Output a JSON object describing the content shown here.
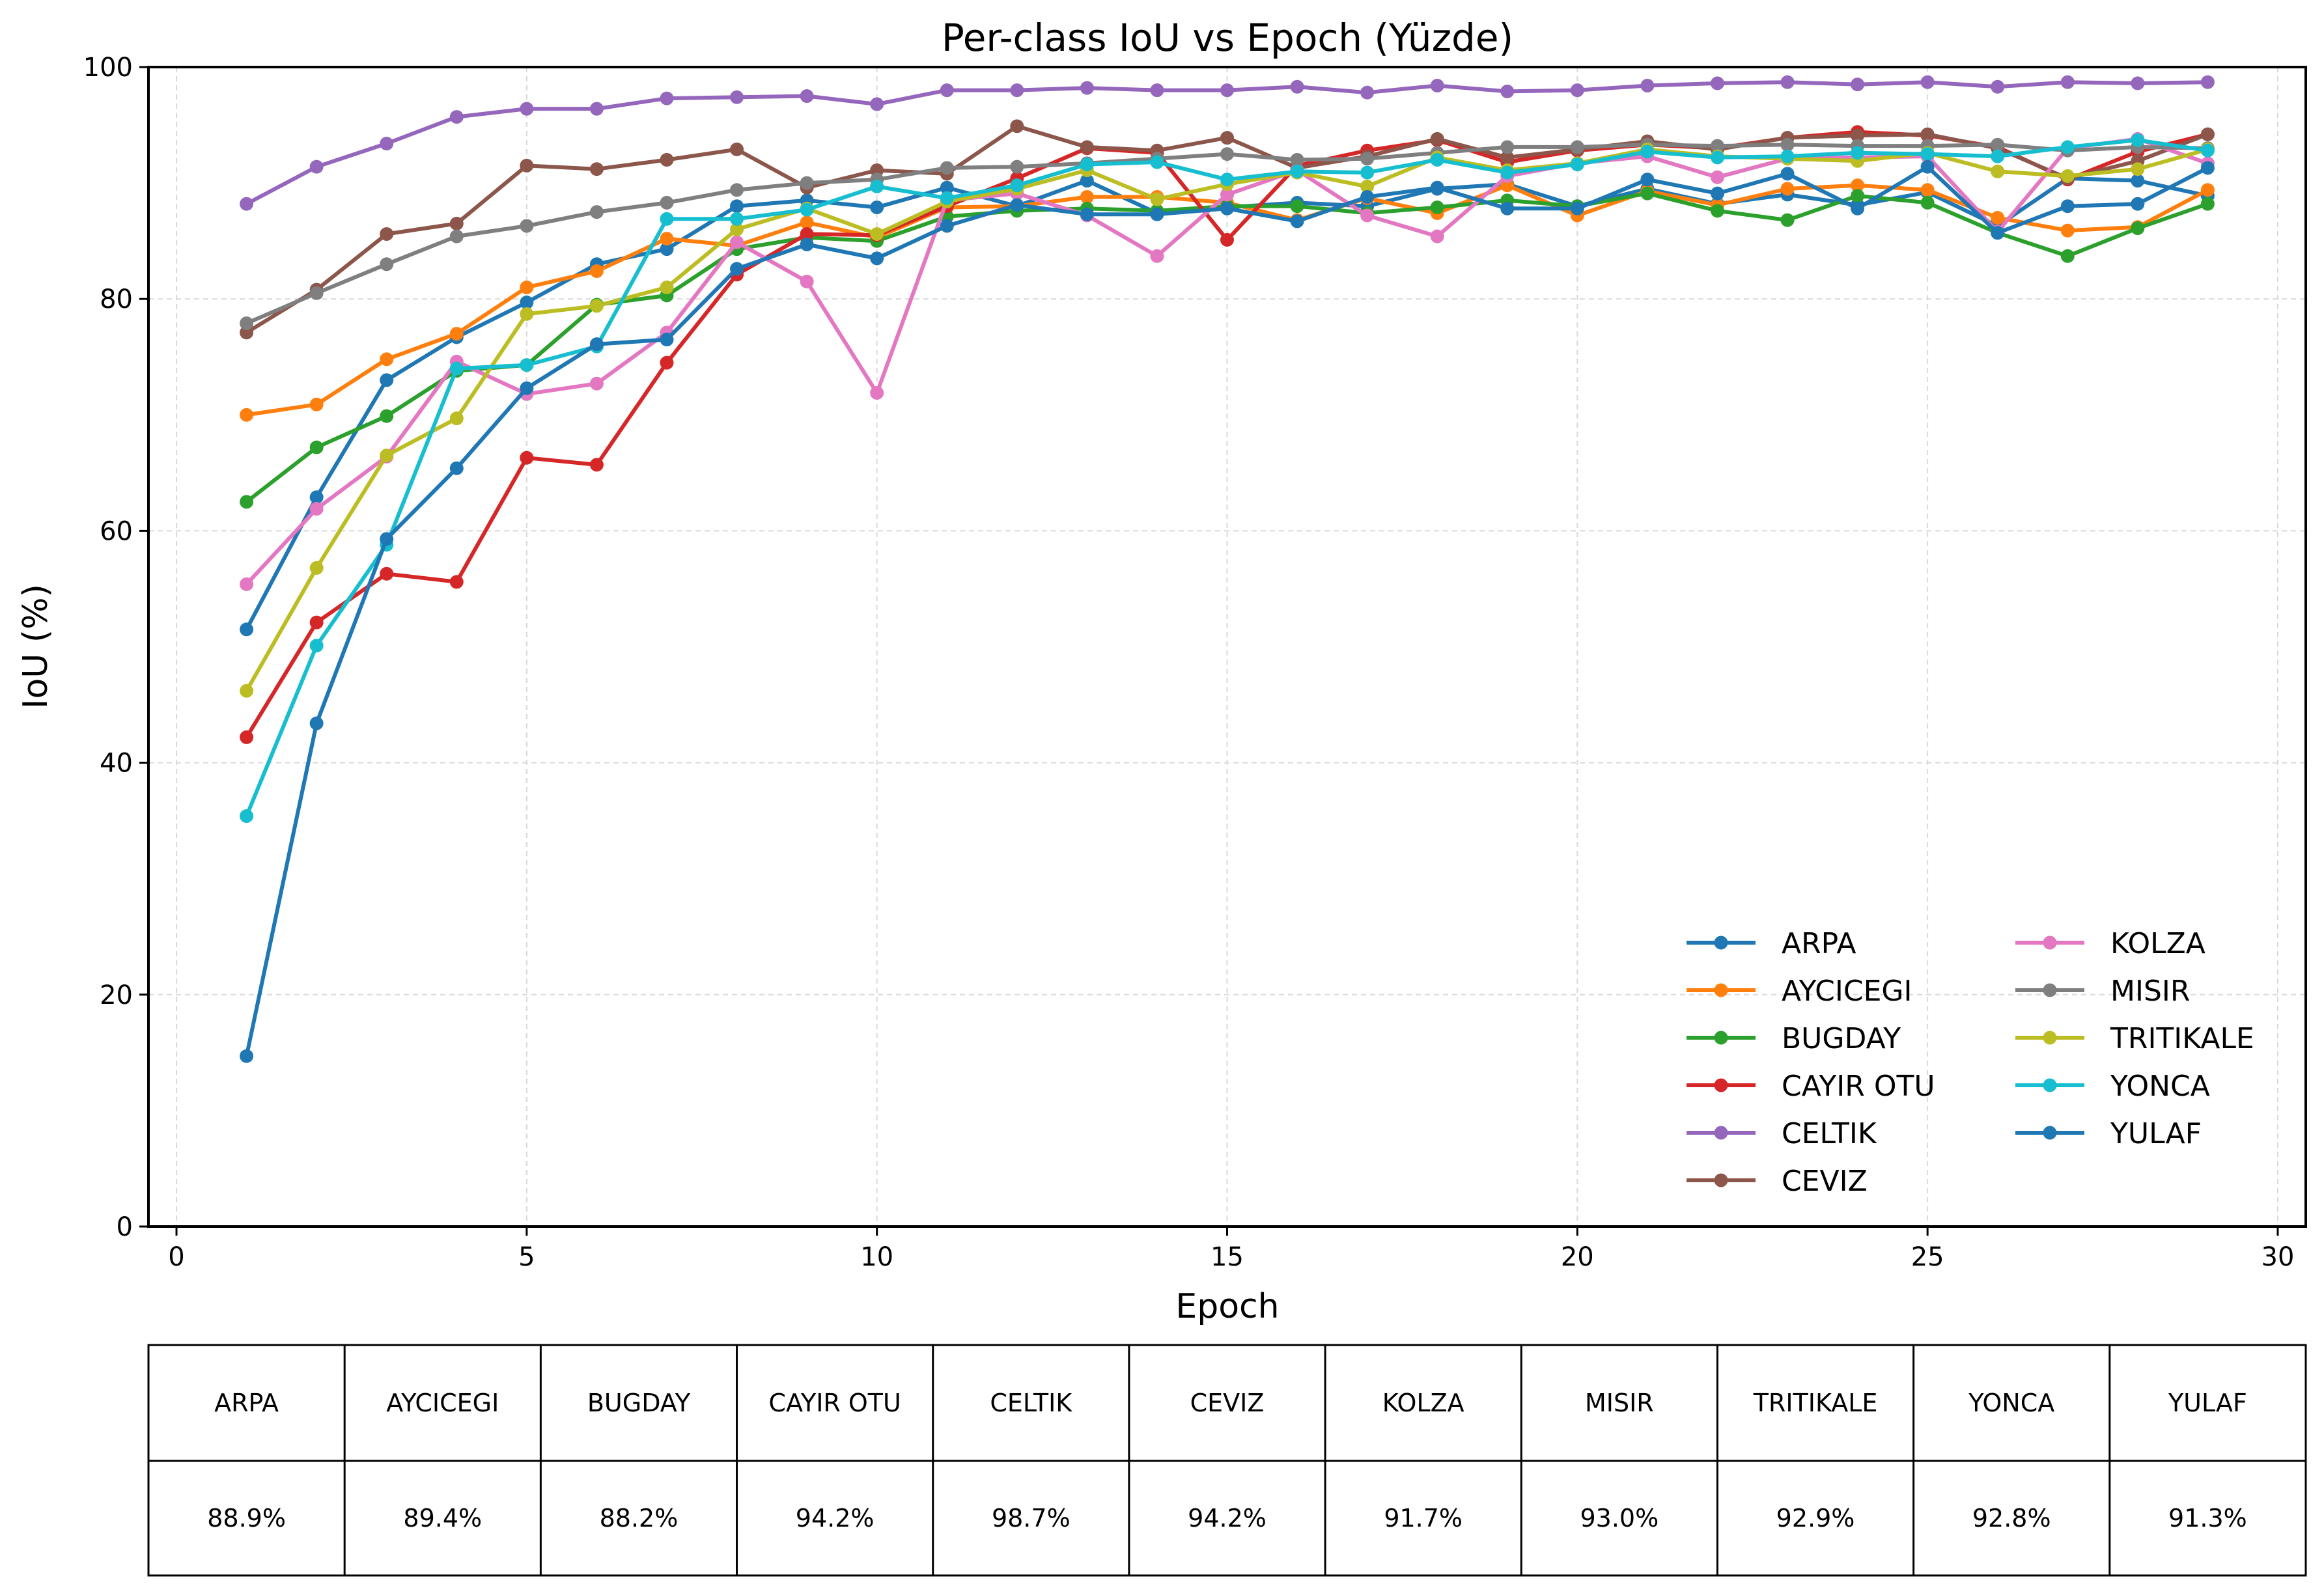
{
  "chart_data": {
    "type": "line",
    "title": "Per-class IoU vs Epoch (Yüzde)",
    "xlabel": "Epoch",
    "ylabel": "IoU (%)",
    "xlim": [
      -0.4,
      30.4
    ],
    "ylim": [
      0,
      100
    ],
    "x_ticks": [
      0,
      5,
      10,
      15,
      20,
      25,
      30
    ],
    "y_ticks": [
      0,
      20,
      40,
      60,
      80,
      100
    ],
    "grid": true,
    "legend_placement": "lower-right",
    "legend_columns": 2,
    "x": [
      1,
      2,
      3,
      4,
      5,
      6,
      7,
      8,
      9,
      10,
      11,
      12,
      13,
      14,
      15,
      16,
      17,
      18,
      19,
      20,
      21,
      22,
      23,
      24,
      25,
      26,
      27,
      28,
      29
    ],
    "series": [
      {
        "name": "ARPA",
        "color": "#1f77b4",
        "values": [
          51.5,
          62.9,
          73.0,
          76.7,
          79.7,
          83.0,
          84.3,
          88.0,
          88.5,
          87.9,
          89.6,
          88.0,
          90.2,
          87.4,
          87.9,
          88.3,
          88.0,
          89.5,
          89.9,
          88.0,
          89.5,
          88.2,
          89.0,
          88.1,
          89.2,
          86.3,
          90.4,
          90.2,
          88.9
        ]
      },
      {
        "name": "AYCICEGI",
        "color": "#ff7f0e",
        "values": [
          70.0,
          70.9,
          74.8,
          77.0,
          81.0,
          82.4,
          85.2,
          84.6,
          86.6,
          85.3,
          87.9,
          88.0,
          88.8,
          88.8,
          88.3,
          86.8,
          88.7,
          87.4,
          89.8,
          87.2,
          89.3,
          88.1,
          89.5,
          89.8,
          89.4,
          87.0,
          85.9,
          86.2,
          89.4
        ]
      },
      {
        "name": "BUGDAY",
        "color": "#2ca02c",
        "values": [
          62.5,
          67.2,
          69.9,
          73.8,
          74.3,
          79.5,
          80.3,
          84.3,
          85.3,
          85.0,
          87.1,
          87.6,
          87.8,
          87.6,
          88.0,
          88.0,
          87.4,
          87.9,
          88.5,
          88.0,
          89.1,
          87.6,
          86.8,
          88.9,
          88.3,
          85.7,
          83.7,
          86.1,
          88.2
        ]
      },
      {
        "name": "CAYIR OTU",
        "color": "#d62728",
        "values": [
          42.2,
          52.1,
          56.3,
          55.6,
          66.3,
          65.7,
          74.5,
          82.1,
          85.6,
          85.5,
          88.0,
          90.4,
          93.0,
          92.6,
          85.1,
          91.5,
          92.8,
          93.7,
          91.8,
          92.8,
          93.3,
          93.0,
          93.9,
          94.4,
          94.1,
          93.1,
          90.3,
          92.7,
          94.2
        ]
      },
      {
        "name": "CELTIK",
        "color": "#9467bd",
        "values": [
          88.2,
          91.4,
          93.4,
          95.7,
          96.4,
          96.4,
          97.3,
          97.4,
          97.5,
          96.8,
          98.0,
          98.0,
          98.2,
          98.0,
          98.0,
          98.3,
          97.8,
          98.4,
          97.9,
          98.0,
          98.4,
          98.6,
          98.7,
          98.5,
          98.7,
          98.3,
          98.7,
          98.6,
          98.7
        ]
      },
      {
        "name": "CEVIZ",
        "color": "#8c564b",
        "values": [
          77.1,
          80.8,
          85.6,
          86.5,
          91.5,
          91.2,
          92.0,
          92.9,
          89.6,
          91.1,
          90.8,
          94.9,
          93.1,
          92.8,
          93.9,
          91.3,
          92.3,
          93.8,
          92.2,
          92.9,
          93.6,
          92.9,
          93.9,
          94.1,
          94.2,
          93.0,
          90.4,
          91.9,
          94.2
        ]
      },
      {
        "name": "KOLZA",
        "color": "#e377c2",
        "values": [
          55.4,
          61.9,
          66.4,
          74.6,
          71.8,
          72.7,
          77.1,
          84.9,
          81.5,
          71.9,
          88.5,
          89.1,
          87.2,
          83.7,
          89.0,
          91.1,
          87.2,
          85.4,
          90.6,
          91.7,
          92.3,
          90.5,
          92.1,
          92.2,
          92.3,
          85.8,
          93.0,
          93.8,
          91.7
        ]
      },
      {
        "name": "MISIR",
        "color": "#7f7f7f",
        "values": [
          77.9,
          80.5,
          83.0,
          85.4,
          86.3,
          87.5,
          88.3,
          89.4,
          90.0,
          90.3,
          91.3,
          91.4,
          91.7,
          92.1,
          92.5,
          92.0,
          92.1,
          92.6,
          93.1,
          93.1,
          93.3,
          93.2,
          93.3,
          93.2,
          93.2,
          93.3,
          92.8,
          93.1,
          93.0
        ]
      },
      {
        "name": "TRITIKALE",
        "color": "#bcbd22",
        "values": [
          46.2,
          56.8,
          66.5,
          69.7,
          78.7,
          79.4,
          81.0,
          86.0,
          87.8,
          85.6,
          88.4,
          89.5,
          91.1,
          88.6,
          89.9,
          90.9,
          89.7,
          92.2,
          91.1,
          91.7,
          92.9,
          92.3,
          92.1,
          91.9,
          92.6,
          91.0,
          90.6,
          91.2,
          92.9
        ]
      },
      {
        "name": "YONCA",
        "color": "#17becf",
        "values": [
          35.4,
          50.1,
          58.8,
          74.0,
          74.3,
          75.9,
          86.9,
          86.9,
          87.7,
          89.7,
          88.7,
          89.8,
          91.6,
          91.8,
          90.3,
          91.0,
          90.9,
          92.0,
          90.9,
          91.6,
          92.7,
          92.2,
          92.3,
          92.6,
          92.5,
          92.3,
          93.1,
          93.7,
          92.8
        ]
      },
      {
        "name": "YULAF",
        "color": "#1f77b4",
        "values": [
          14.7,
          43.4,
          59.3,
          65.4,
          72.3,
          76.1,
          76.5,
          82.6,
          84.7,
          83.5,
          86.3,
          88.1,
          87.3,
          87.3,
          87.8,
          86.7,
          88.8,
          89.6,
          87.8,
          87.8,
          90.3,
          89.1,
          90.8,
          87.8,
          91.4,
          85.7,
          88.0,
          88.2,
          91.3
        ]
      }
    ],
    "table": {
      "headers": [
        "ARPA",
        "AYCICEGI",
        "BUGDAY",
        "CAYIR OTU",
        "CELTIK",
        "CEVIZ",
        "KOLZA",
        "MISIR",
        "TRITIKALE",
        "YONCA",
        "YULAF"
      ],
      "values": [
        "88.9%",
        "89.4%",
        "88.2%",
        "94.2%",
        "98.7%",
        "94.2%",
        "91.7%",
        "93.0%",
        "92.9%",
        "92.8%",
        "91.3%"
      ]
    }
  }
}
